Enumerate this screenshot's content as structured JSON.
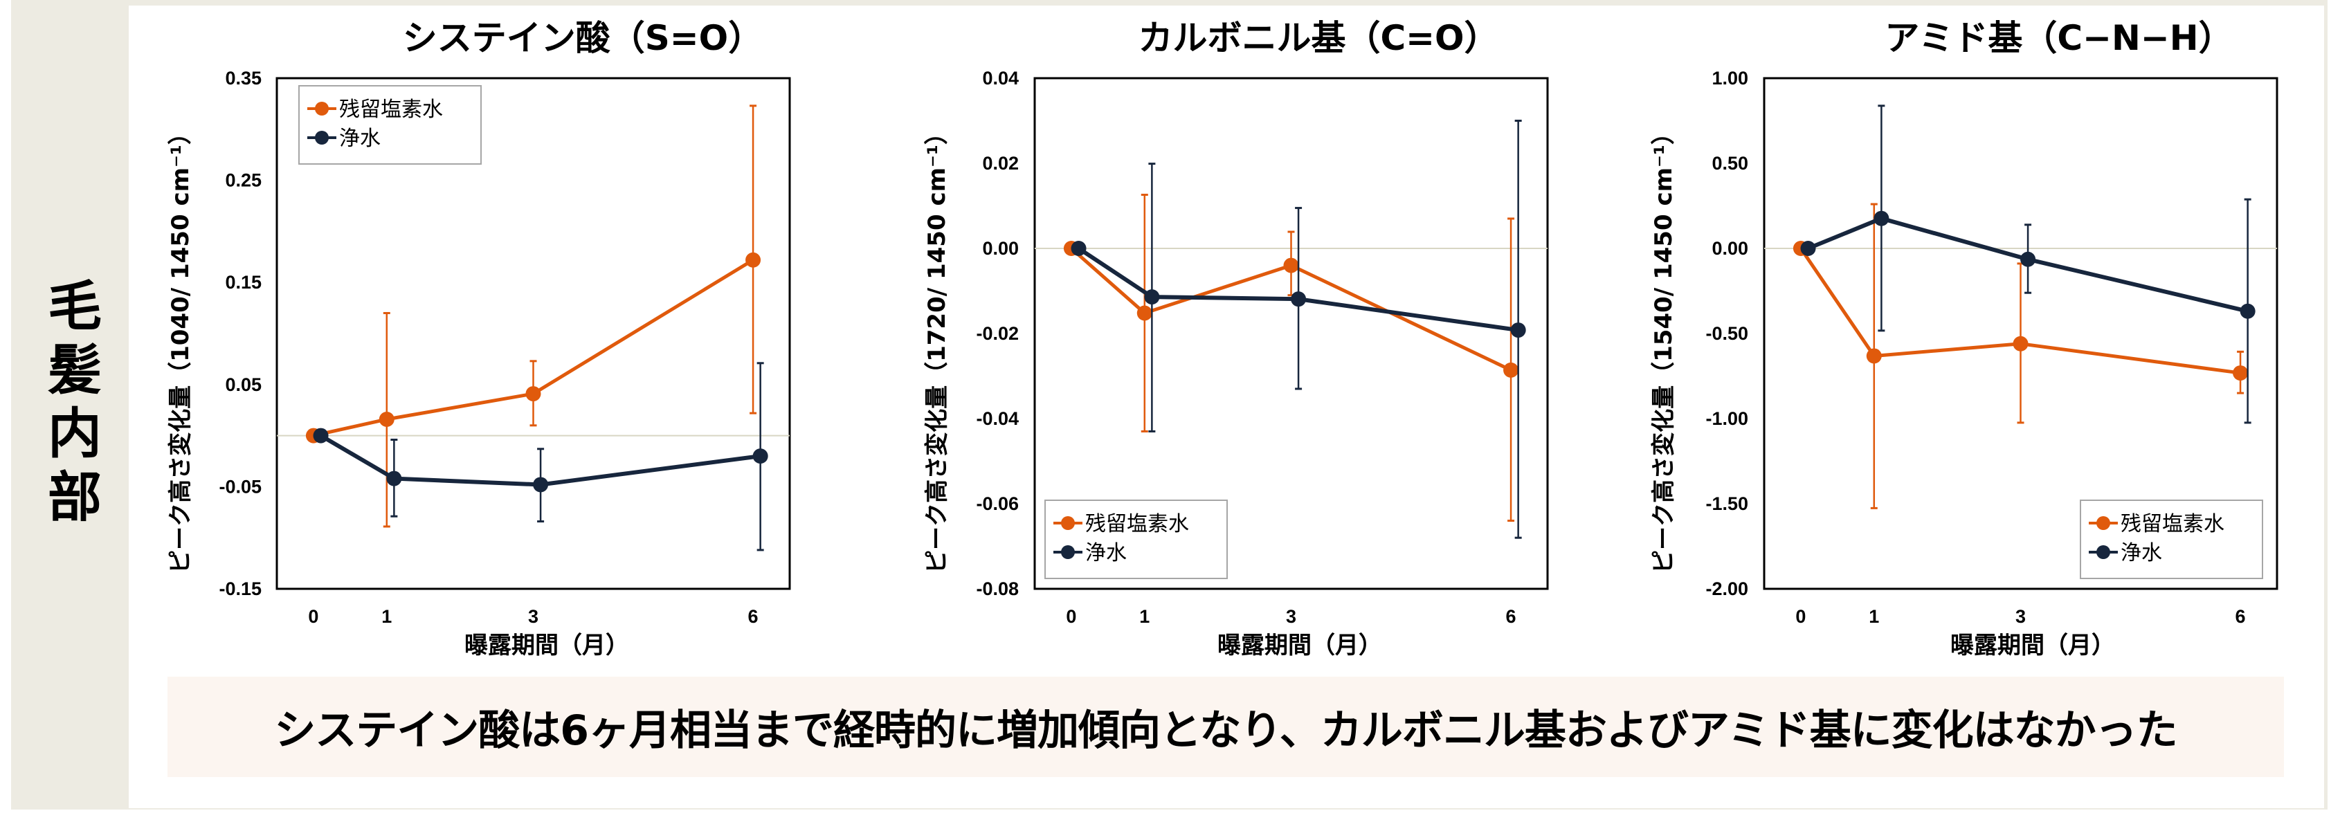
{
  "section_label": "毛髪内部",
  "caption": "システイン酸は6ヶ月相当まで経時的に増加傾向となり、カルボニル基およびアミド基に変化はなかった",
  "colors": {
    "series_residual_chlorine": "#E05A0C",
    "series_purified_water": "#17263D",
    "zero_line": "#D8D6C4",
    "legend_border": "#A6A6A6",
    "frame_bg": "#EDEBE2",
    "caption_bg": "#FCF5F0"
  },
  "chart_data": [
    {
      "type": "line",
      "title": "システイン酸（S=O）",
      "xlabel": "曝露期間（月）",
      "ylabel": "ピーク高さ変化量（1040/ 1450 cm⁻¹）",
      "x": [
        0,
        1,
        3,
        6
      ],
      "x_ticks": [
        "0",
        "1",
        "3",
        "6"
      ],
      "ylim": [
        -0.15,
        0.35
      ],
      "y_ticks": [
        "0.35",
        "0.25",
        "0.15",
        "0.05",
        "-0.05",
        "-0.15"
      ],
      "y_tick_values": [
        0.35,
        0.25,
        0.15,
        0.05,
        -0.05,
        -0.15
      ],
      "zero_line": true,
      "grid": false,
      "legend_position": "top-left",
      "series": [
        {
          "name": "残留塩素水",
          "values": [
            0,
            0.016,
            0.041,
            0.172
          ],
          "err_upper": [
            0,
            0.12,
            0.073,
            0.323
          ],
          "err_lower": [
            0,
            -0.089,
            0.01,
            0.022
          ]
        },
        {
          "name": "浄水",
          "values": [
            0,
            -0.042,
            -0.048,
            -0.02
          ],
          "err_upper": [
            0,
            -0.004,
            -0.013,
            0.071
          ],
          "err_lower": [
            0,
            -0.079,
            -0.084,
            -0.112
          ]
        }
      ]
    },
    {
      "type": "line",
      "title": "カルボニル基（C=O）",
      "xlabel": "曝露期間（月）",
      "ylabel": "ピーク高さ変化量（1720/ 1450 cm⁻¹）",
      "x": [
        0,
        1,
        3,
        6
      ],
      "x_ticks": [
        "0",
        "1",
        "3",
        "6"
      ],
      "ylim": [
        -0.08,
        0.04
      ],
      "y_ticks": [
        "0.04",
        "0.02",
        "0.00",
        "-0.02",
        "-0.04",
        "-0.06",
        "-0.08"
      ],
      "y_tick_values": [
        0.04,
        0.02,
        0.0,
        -0.02,
        -0.04,
        -0.06,
        -0.08
      ],
      "zero_line": true,
      "grid": false,
      "legend_position": "bottom-left",
      "series": [
        {
          "name": "残留塩素水",
          "values": [
            0,
            -0.0152,
            -0.004,
            -0.0286
          ],
          "err_upper": [
            0,
            0.0126,
            0.0039,
            0.007
          ],
          "err_lower": [
            0,
            -0.043,
            -0.011,
            -0.064
          ]
        },
        {
          "name": "浄水",
          "values": [
            0,
            -0.0114,
            -0.0119,
            -0.0192
          ],
          "err_upper": [
            0,
            0.0199,
            0.0095,
            0.03
          ],
          "err_lower": [
            0,
            -0.043,
            -0.033,
            -0.068
          ]
        }
      ]
    },
    {
      "type": "line",
      "title": "アミド基（C−N−H）",
      "xlabel": "曝露期間（月）",
      "ylabel": "ピーク高さ変化量（1540/ 1450 cm⁻¹）",
      "x": [
        0,
        1,
        3,
        6
      ],
      "x_ticks": [
        "0",
        "1",
        "3",
        "6"
      ],
      "ylim": [
        -2.0,
        1.0
      ],
      "y_ticks": [
        "1.00",
        "0.50",
        "0.00",
        "-0.50",
        "-1.00",
        "-1.50",
        "-2.00"
      ],
      "y_tick_values": [
        1.0,
        0.5,
        0.0,
        -0.5,
        -1.0,
        -1.5,
        -2.0
      ],
      "zero_line": true,
      "grid": false,
      "legend_position": "bottom-right",
      "series": [
        {
          "name": "残留塩素水",
          "values": [
            0,
            -0.632,
            -0.56,
            -0.732
          ],
          "err_upper": [
            0,
            0.26,
            -0.089,
            -0.607
          ],
          "err_lower": [
            0,
            -1.526,
            -1.024,
            -0.85
          ]
        },
        {
          "name": "浄水",
          "values": [
            0,
            0.176,
            -0.064,
            -0.369
          ],
          "err_upper": [
            0,
            0.838,
            0.139,
            0.288
          ],
          "err_lower": [
            0,
            -0.483,
            -0.261,
            -1.024
          ]
        }
      ]
    }
  ]
}
